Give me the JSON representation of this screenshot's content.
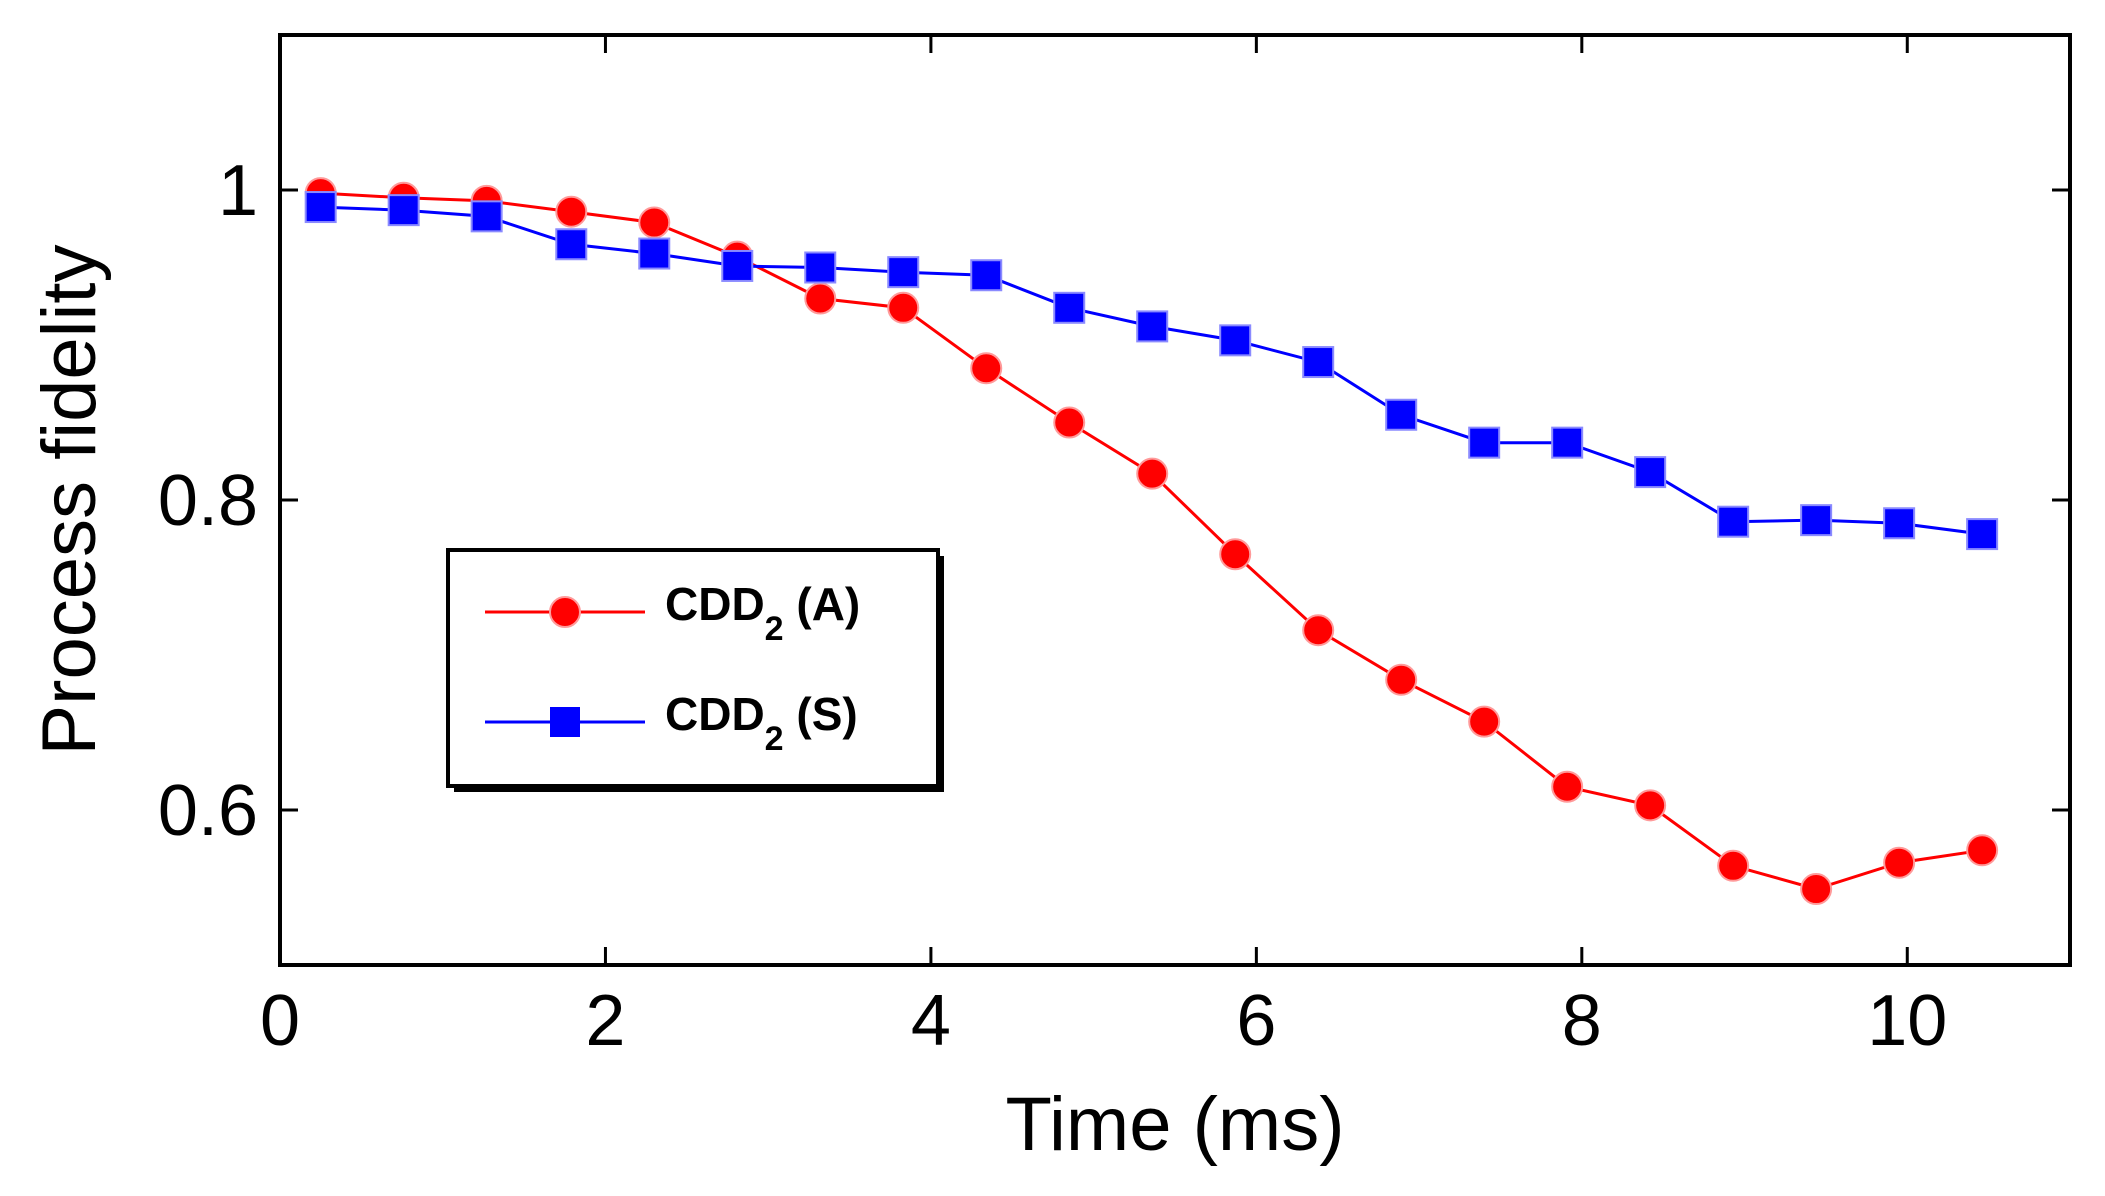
{
  "chart_data": {
    "type": "line",
    "title": "",
    "xlabel": "Time (ms)",
    "ylabel": "Process fidelity",
    "xlim": [
      0,
      11
    ],
    "ylim": [
      0.5,
      1.1
    ],
    "xticks": [
      0,
      2,
      4,
      6,
      8,
      10
    ],
    "xtick_labels": [
      "0",
      "2",
      "4",
      "6",
      "8",
      "10"
    ],
    "yticks": [
      0.6,
      0.8,
      1.0
    ],
    "ytick_labels": [
      "0.6",
      "0.8",
      "1"
    ],
    "grid": false,
    "legend_position": "middle-left",
    "series": [
      {
        "name": "CDD2 (A)",
        "label_main": "CDD",
        "label_sub": "2",
        "label_suffix": " (A)",
        "color": "#ff0000",
        "marker": "circle",
        "x": [
          0.25,
          0.76,
          1.27,
          1.79,
          2.3,
          2.81,
          3.32,
          3.83,
          4.34,
          4.85,
          5.36,
          5.87,
          6.38,
          6.89,
          7.4,
          7.91,
          8.42,
          8.93,
          9.44,
          9.95,
          10.46
        ],
        "y": [
          0.998,
          0.995,
          0.993,
          0.986,
          0.979,
          0.957,
          0.93,
          0.924,
          0.885,
          0.85,
          0.817,
          0.765,
          0.716,
          0.684,
          0.657,
          0.615,
          0.603,
          0.564,
          0.549,
          0.566,
          0.574
        ]
      },
      {
        "name": "CDD2 (S)",
        "label_main": "CDD",
        "label_sub": "2",
        "label_suffix": " (S)",
        "color": "#0000ff",
        "marker": "square",
        "x": [
          0.25,
          0.76,
          1.27,
          1.79,
          2.3,
          2.81,
          3.32,
          3.83,
          4.34,
          4.85,
          5.36,
          5.87,
          6.38,
          6.89,
          7.4,
          7.91,
          8.42,
          8.93,
          9.44,
          9.95,
          10.46
        ],
        "y": [
          0.989,
          0.987,
          0.983,
          0.965,
          0.959,
          0.951,
          0.95,
          0.947,
          0.945,
          0.924,
          0.912,
          0.903,
          0.889,
          0.855,
          0.837,
          0.837,
          0.818,
          0.786,
          0.787,
          0.785,
          0.778
        ]
      }
    ]
  }
}
